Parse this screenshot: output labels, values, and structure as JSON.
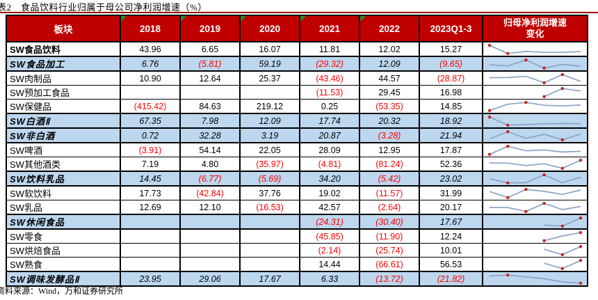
{
  "title": "表2　食品饮料行业归属于母公司净利润增速（%）",
  "source_note": "资料来源：Wind，万和证券研究所",
  "colors": {
    "header_bg": "#C00000",
    "header_text": "#FFFFFF",
    "category_row_bg": "#BDD7EE",
    "negative_text": "#FF0000",
    "top_rule": "#990000",
    "corner_triangle": "#1E8F2E",
    "sparkline_line": "#89A4C8",
    "sparkline_marker": "#C9211E"
  },
  "table": {
    "columns": [
      "板块",
      "2018",
      "2019",
      "2020",
      "2021",
      "2022",
      "2023Q1-3",
      "归母净利润增速\n变化"
    ],
    "header_triangle_columns": [
      1,
      2,
      3,
      4,
      5
    ],
    "rows": [
      {
        "label": "SW食品饮料",
        "row_style": "total",
        "values": [
          "43.96",
          "6.65",
          "16.07",
          "11.81",
          "12.02",
          "15.27"
        ]
      },
      {
        "label": "SW食品加工",
        "row_style": "category",
        "values": [
          "6.76",
          "(5.81)",
          "59.19",
          "(29.32)",
          "12.09",
          "(9.65)"
        ]
      },
      {
        "label": "SW肉制品",
        "row_style": "plain",
        "values": [
          "10.90",
          "12.64",
          "25.37",
          "(43.46)",
          "44.57",
          "(28.87)"
        ]
      },
      {
        "label": "SW预加工食品",
        "row_style": "plain",
        "values": [
          "",
          "",
          "",
          "(11.53)",
          "29.45",
          "16.98"
        ]
      },
      {
        "label": "SW保健品",
        "row_style": "plain",
        "values": [
          "(415.42)",
          "84.63",
          "219.12",
          "0.25",
          "(53.35)",
          "14.85"
        ]
      },
      {
        "label": "SW白酒Ⅱ",
        "row_style": "category",
        "values": [
          "67.35",
          "7.98",
          "12.09",
          "17.74",
          "20.32",
          "18.92"
        ]
      },
      {
        "label": "SW非白酒",
        "row_style": "category",
        "values": [
          "0.72",
          "32.28",
          "3.19",
          "20.87",
          "(3.28)",
          "21.94"
        ]
      },
      {
        "label": "SW啤酒",
        "row_style": "plain",
        "values": [
          "(3.91)",
          "54.14",
          "22.05",
          "28.09",
          "12.95",
          "17.87"
        ]
      },
      {
        "label": "SW其他酒类",
        "row_style": "plain",
        "values": [
          "7.19",
          "4.80",
          "(35.97)",
          "(4.81)",
          "(81.24)",
          "52.36"
        ]
      },
      {
        "label": "SW饮料乳品",
        "row_style": "category",
        "values": [
          "14.45",
          "(6.77)",
          "(5.69)",
          "34.20",
          "(5.42)",
          "23.02"
        ]
      },
      {
        "label": "SW软饮料",
        "row_style": "plain",
        "values": [
          "17.73",
          "(42.84)",
          "37.76",
          "19.02",
          "(11.57)",
          "31.99"
        ]
      },
      {
        "label": "SW乳品",
        "row_style": "plain",
        "values": [
          "12.69",
          "12.10",
          "(16.53)",
          "42.57",
          "(2.64)",
          "20.17"
        ]
      },
      {
        "label": "SW休闲食品",
        "row_style": "category",
        "values": [
          "",
          "",
          "",
          "(24.31)",
          "(30.40)",
          "17.67"
        ]
      },
      {
        "label": "SW零食",
        "row_style": "plain",
        "values": [
          "",
          "",
          "",
          "(45.85)",
          "(11.90)",
          "12.24"
        ]
      },
      {
        "label": "SW烘焙食品",
        "row_style": "plain",
        "values": [
          "",
          "",
          "",
          "(2.14)",
          "(25.74)",
          "10.01"
        ]
      },
      {
        "label": "SW熟食",
        "row_style": "plain",
        "values": [
          "",
          "",
          "",
          "14.44",
          "(66.61)",
          "56.53"
        ]
      },
      {
        "label": "SW调味发酵品Ⅱ",
        "row_style": "category",
        "values": [
          "23.95",
          "29.06",
          "17.67",
          "6.33",
          "(13.72)",
          "(21.82)"
        ]
      }
    ]
  }
}
